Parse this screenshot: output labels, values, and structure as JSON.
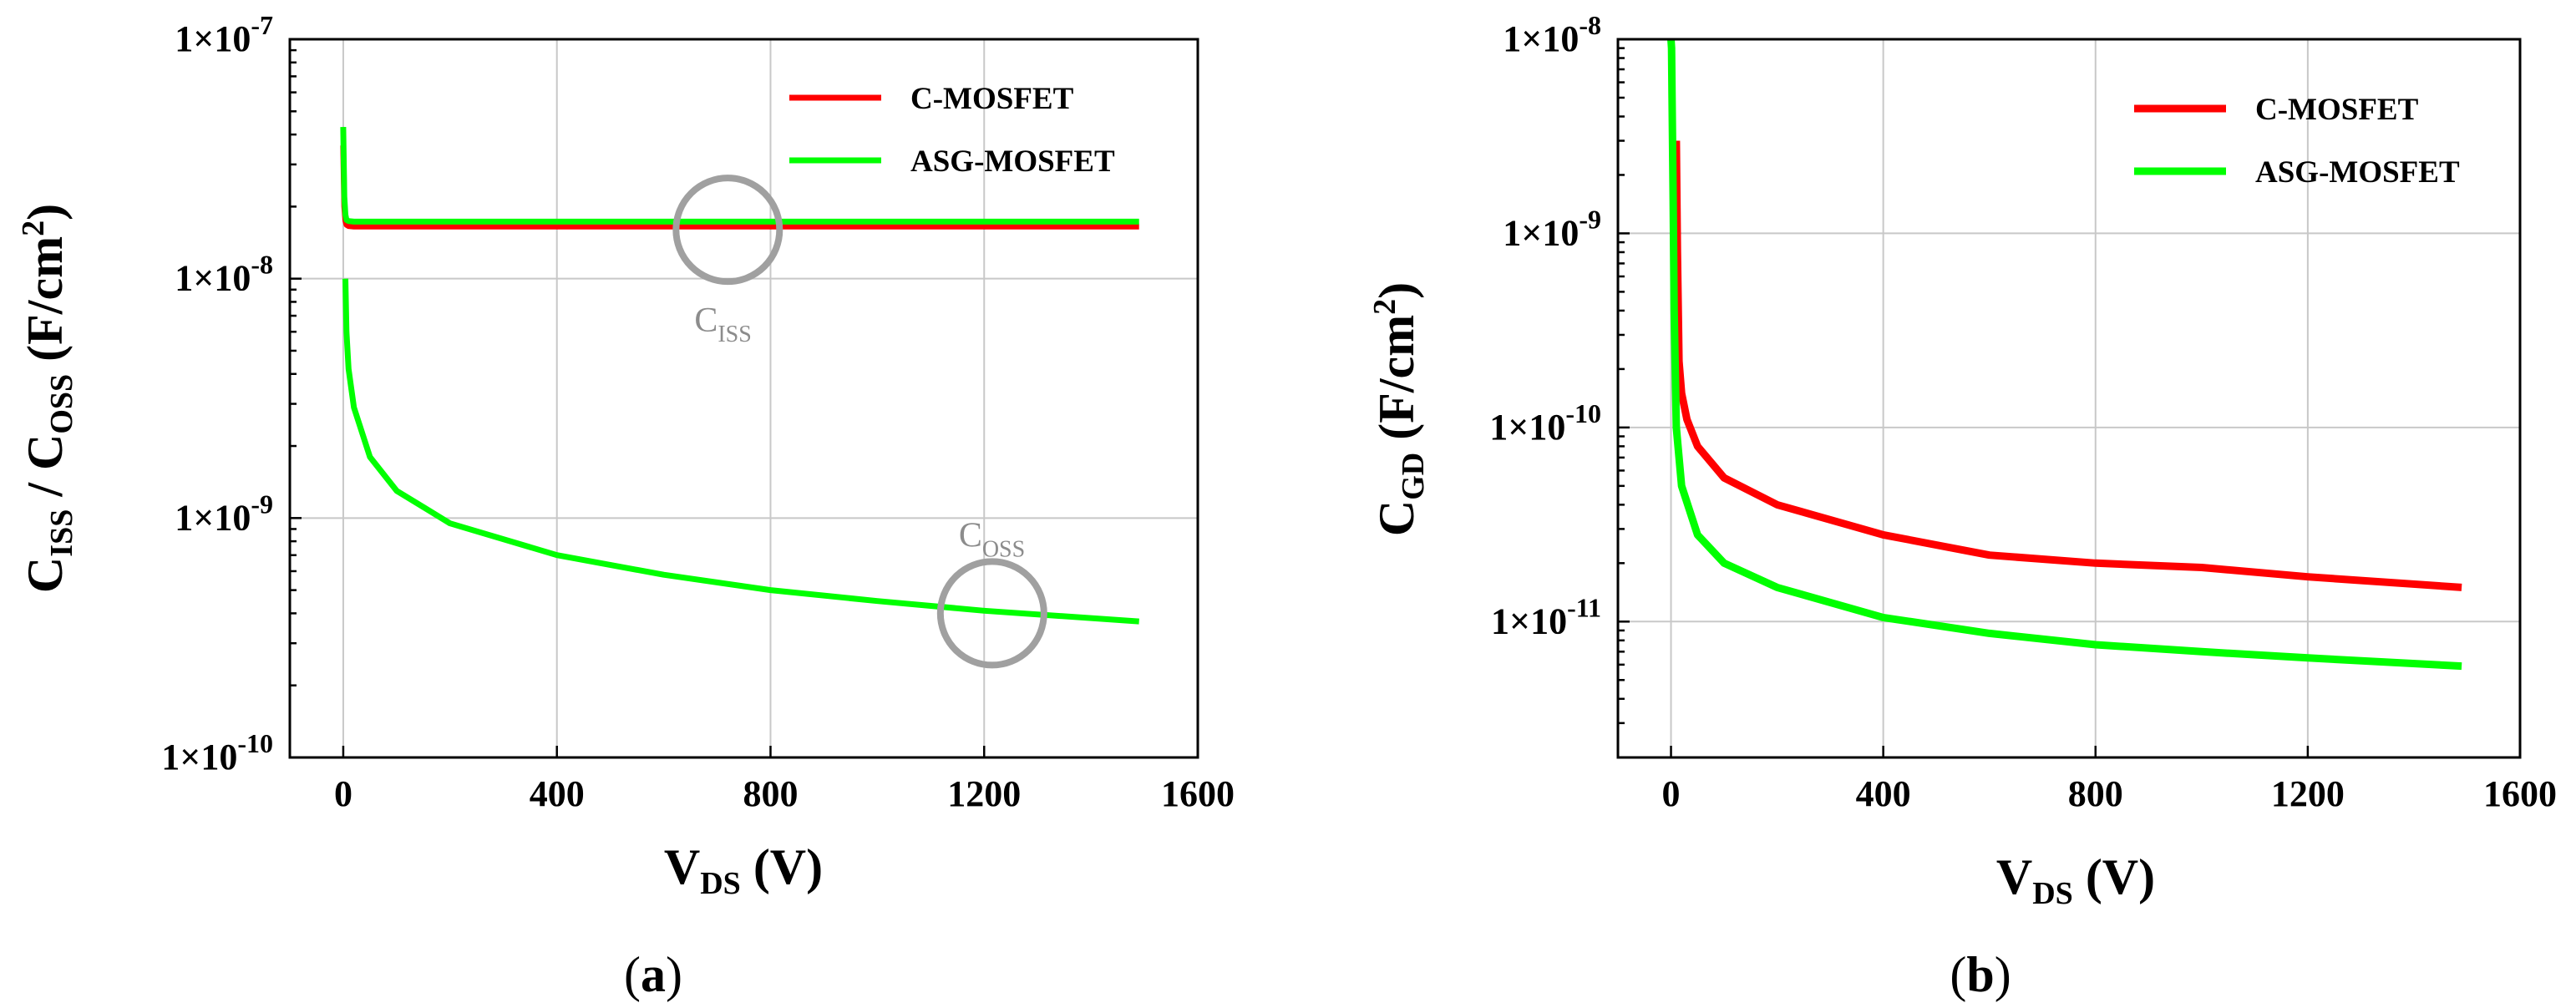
{
  "colors": {
    "c_mosfet": "#ff0000",
    "asg_mosfet": "#00ff00",
    "annotation": "#a0a0a0",
    "grid": "#c8c8c8"
  },
  "chart_data": [
    {
      "id": "a",
      "type": "line",
      "caption_letter": "a",
      "x_scale": "linear",
      "y_scale": "log",
      "xlim": [
        -100,
        1600
      ],
      "ylim_exp": [
        -10,
        -7
      ],
      "x_ticks": [
        0,
        400,
        800,
        1200,
        1600
      ],
      "x_tick_labels": [
        "0",
        "400",
        "800",
        "1200",
        "1600"
      ],
      "y_tick_exps": [
        -10,
        -9,
        -8,
        -7
      ],
      "y_tick_labels": [
        {
          "base": "1×10",
          "exp": "-10"
        },
        {
          "base": "1×10",
          "exp": "-9"
        },
        {
          "base": "1×10",
          "exp": "-8"
        },
        {
          "base": "1×10",
          "exp": "-7"
        }
      ],
      "xlabel": {
        "main": "V",
        "sub": "DS",
        "rest": " (V)"
      },
      "ylabel": {
        "c1": "C",
        "s1": "ISS",
        "mid": " / C",
        "s2": "OSS",
        "unit": " (F/cm",
        "sup": "2",
        "close": ")"
      },
      "legend": [
        "C-MOSFET",
        "ASG-MOSFET"
      ],
      "legend_position": "top-right",
      "series": [
        {
          "name": "C-MOSFET (C_ISS)",
          "color": "#ff0000",
          "x": [
            0,
            1,
            2,
            4,
            6,
            10,
            20,
            50,
            100,
            400,
            800,
            1200,
            1490
          ],
          "y": [
            3.6e-08,
            2.6e-08,
            2e-08,
            1.75e-08,
            1.68e-08,
            1.66e-08,
            1.65e-08,
            1.65e-08,
            1.65e-08,
            1.65e-08,
            1.65e-08,
            1.65e-08,
            1.65e-08
          ]
        },
        {
          "name": "ASG-MOSFET (C_ISS)",
          "color": "#00ff00",
          "x": [
            0,
            1,
            2,
            4,
            6,
            10,
            20,
            50,
            100,
            400,
            800,
            1200,
            1490
          ],
          "y": [
            4.3e-08,
            3e-08,
            2.2e-08,
            1.85e-08,
            1.76e-08,
            1.74e-08,
            1.73e-08,
            1.73e-08,
            1.73e-08,
            1.73e-08,
            1.73e-08,
            1.73e-08,
            1.73e-08
          ]
        },
        {
          "name": "ASG-MOSFET (C_OSS)",
          "color": "#00ff00",
          "x": [
            4,
            6,
            10,
            20,
            50,
            100,
            200,
            400,
            600,
            800,
            1000,
            1200,
            1490
          ],
          "y": [
            1e-08,
            6e-09,
            4.2e-09,
            2.9e-09,
            1.8e-09,
            1.3e-09,
            9.5e-10,
            7e-10,
            5.8e-10,
            5e-10,
            4.5e-10,
            4.1e-10,
            3.7e-10
          ]
        }
      ],
      "annotations": [
        {
          "label_main": "C",
          "label_sub": "ISS",
          "x": 720,
          "y": 1.6e-08
        },
        {
          "label_main": "C",
          "label_sub": "OSS",
          "x": 1215,
          "y": 4e-10
        }
      ]
    },
    {
      "id": "b",
      "type": "line",
      "caption_letter": "b",
      "x_scale": "linear",
      "y_scale": "log",
      "xlim": [
        -100,
        1600
      ],
      "ylim_exp": [
        -11.7,
        -8
      ],
      "x_ticks": [
        0,
        400,
        800,
        1200,
        1600
      ],
      "x_tick_labels": [
        "0",
        "400",
        "800",
        "1200",
        "1600"
      ],
      "y_tick_exps": [
        -11,
        -10,
        -9,
        -8
      ],
      "y_tick_labels": [
        {
          "base": "1×10",
          "exp": "-11"
        },
        {
          "base": "1×10",
          "exp": "-10"
        },
        {
          "base": "1×10",
          "exp": "-9"
        },
        {
          "base": "1×10",
          "exp": "-8"
        }
      ],
      "xlabel": {
        "main": "V",
        "sub": "DS",
        "rest": " (V)"
      },
      "ylabel": {
        "c1": "C",
        "s1": "GD",
        "unit": " (F/cm",
        "sup": "2",
        "close": ")"
      },
      "legend": [
        "C-MOSFET",
        "ASG-MOSFET"
      ],
      "legend_position": "top-right",
      "series": [
        {
          "name": "C-MOSFET",
          "color": "#ff0000",
          "x": [
            10,
            12,
            15,
            20,
            30,
            50,
            100,
            200,
            400,
            600,
            800,
            1000,
            1200,
            1490
          ],
          "y": [
            3e-09,
            8e-10,
            2.2e-10,
            1.5e-10,
            1.1e-10,
            8e-11,
            5.5e-11,
            4e-11,
            2.8e-11,
            2.2e-11,
            2e-11,
            1.9e-11,
            1.7e-11,
            1.5e-11
          ]
        },
        {
          "name": "ASG-MOSFET",
          "color": "#00ff00",
          "x": [
            0,
            1,
            2,
            4,
            6,
            10,
            20,
            50,
            100,
            200,
            400,
            600,
            800,
            1000,
            1200,
            1490
          ],
          "y": [
            1e-08,
            9e-09,
            5e-09,
            1.5e-09,
            4e-10,
            1e-10,
            5e-11,
            2.8e-11,
            2e-11,
            1.5e-11,
            1.05e-11,
            8.7e-12,
            7.6e-12,
            7e-12,
            6.5e-12,
            5.9e-12
          ]
        }
      ],
      "annotations": []
    }
  ]
}
